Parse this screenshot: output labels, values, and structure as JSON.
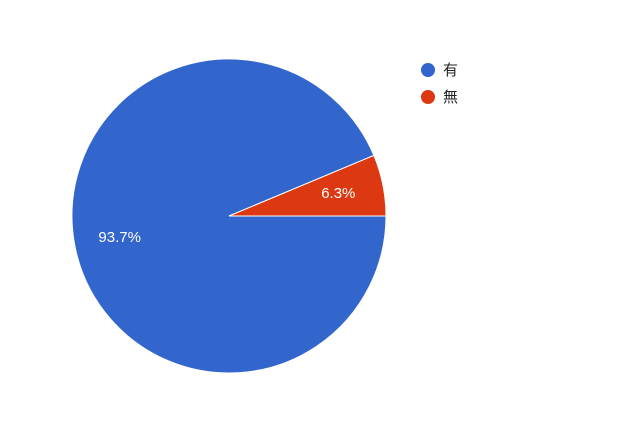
{
  "chart_data": {
    "type": "pie",
    "categories": [
      "有",
      "無"
    ],
    "values": [
      93.7,
      6.3
    ],
    "value_labels": [
      "93.7%",
      "6.3%"
    ],
    "colors": [
      "#3366cc",
      "#dc3912"
    ],
    "legend": "right"
  }
}
